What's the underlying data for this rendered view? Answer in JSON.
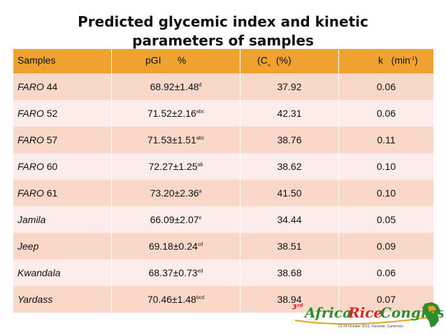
{
  "title_line1": "Predicted glycemic index and  kinetic",
  "title_line2": "parameters of samples",
  "table": {
    "headers": {
      "samples": "Samples",
      "pgi": "pGI      %",
      "cinf_open": "(C",
      "cinf_sub": "∞",
      "cinf_rest": "  (%)",
      "k_main": "k   (min",
      "k_sup": "-1",
      "k_close": ")"
    },
    "rows": [
      {
        "name_italic": "FARO",
        "name_rest": " 44",
        "pgi": "68.92±1.48",
        "pgi_sup": "d",
        "cinf": "37.92",
        "k": "0.06"
      },
      {
        "name_italic": "FARO",
        "name_rest": " 52",
        "pgi": "71.52±2.16",
        "pgi_sup": "abc",
        "cinf": "42.31",
        "k": "0.06"
      },
      {
        "name_italic": "FARO",
        "name_rest": " 57",
        "pgi": "71.53±1.51",
        "pgi_sup": "abc",
        "cinf": "38.76",
        "k": "0.11"
      },
      {
        "name_italic": "FARO",
        "name_rest": " 60",
        "pgi": "72.27±1.25",
        "pgi_sup": "ab",
        "cinf": "38.62",
        "k": "0.10"
      },
      {
        "name_italic": "FARO",
        "name_rest": " 61",
        "pgi": "73.20±2.36",
        "pgi_sup": "a",
        "cinf": "41.50",
        "k": "0.10"
      },
      {
        "name_italic": "Jamila",
        "name_rest": "",
        "pgi": "66.09±2.07",
        "pgi_sup": "e",
        "cinf": "34.44",
        "k": "0.05"
      },
      {
        "name_italic": "Jeep",
        "name_rest": "",
        "pgi": "69.18±0.24",
        "pgi_sup": "cd",
        "cinf": "38.51",
        "k": "0.09"
      },
      {
        "name_italic": "Kwandala",
        "name_rest": "",
        "pgi": "68.37±0.73",
        "pgi_sup": "ed",
        "cinf": "38.68",
        "k": "0.06"
      },
      {
        "name_italic": "Yardass",
        "name_rest": "",
        "pgi": "70.46±1.48",
        "pgi_sup": "bcd",
        "cinf": "38.94",
        "k": "0.07"
      }
    ]
  },
  "logo": {
    "ordinal": "3rd",
    "brand": "Africa Rice Congress",
    "dates": "21-24 October 2013, Yaoundé, Cameroon",
    "colors": {
      "green": "#2e8b2e",
      "red": "#d42a1e",
      "orange": "#e8a21a"
    }
  }
}
